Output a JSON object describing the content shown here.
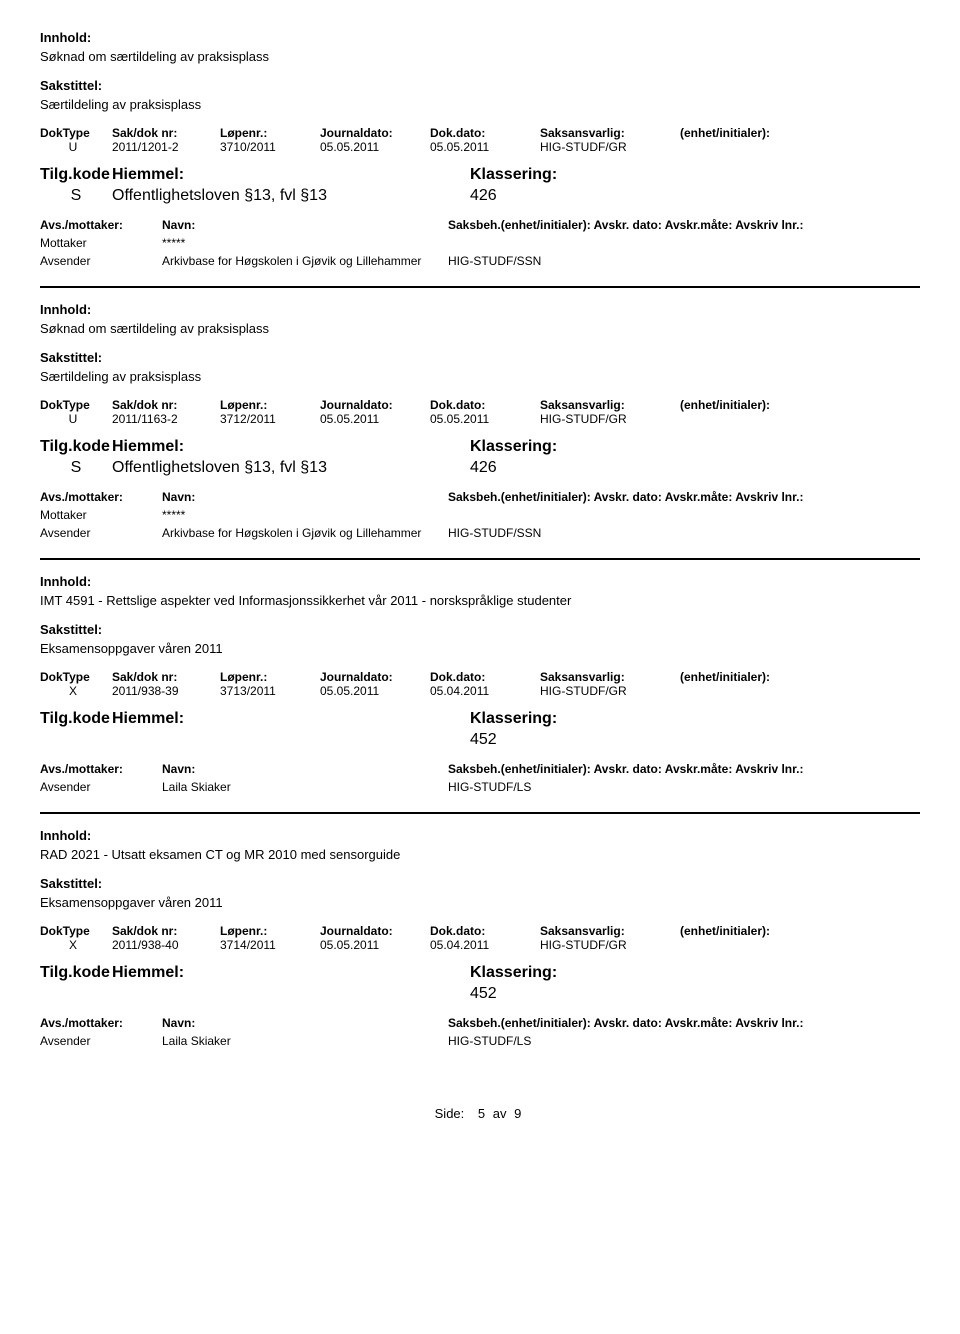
{
  "labels": {
    "innhold": "Innhold:",
    "sakstittel": "Sakstittel:",
    "doktype": "DokType",
    "sakdok": "Sak/dok nr:",
    "lopenr": "Løpenr.:",
    "journaldato": "Journaldato:",
    "dokdato": "Dok.dato:",
    "saksansvarlig": "Saksansvarlig:",
    "enhet": "(enhet/initialer):",
    "tilgkode": "Tilg.kode",
    "hiemmel": "Hiemmel:",
    "klassering": "Klassering:",
    "avs_mottaker": "Avs./mottaker:",
    "navn": "Navn:",
    "saksbeh_line": "Saksbeh.(enhet/initialer): Avskr. dato:   Avskr.måte:  Avskriv lnr.:",
    "mottaker": "Mottaker",
    "avsender": "Avsender",
    "side": "Side:",
    "av": "av"
  },
  "records": [
    {
      "innhold": "Søknad om særtildeling av praksisplass",
      "sakstittel": "Særtildeling av praksisplass",
      "doktype": "U",
      "sakdok": "2011/1201-2",
      "lopenr": "3710/2011",
      "journaldato": "05.05.2011",
      "dokdato": "05.05.2011",
      "saksansvarlig": "HIG-STUDF/GR",
      "tilgkode": "S",
      "hiemmel": "Offentlighetsloven §13, fvl §13",
      "klassering": "426",
      "parties": [
        {
          "role": "Mottaker",
          "name": "*****",
          "unit": ""
        },
        {
          "role": "Avsender",
          "name": "Arkivbase for Høgskolen i Gjøvik og Lillehammer",
          "unit": "HIG-STUDF/SSN"
        }
      ]
    },
    {
      "innhold": "Søknad om særtildeling av praksisplass",
      "sakstittel": "Særtildeling av praksisplass",
      "doktype": "U",
      "sakdok": "2011/1163-2",
      "lopenr": "3712/2011",
      "journaldato": "05.05.2011",
      "dokdato": "05.05.2011",
      "saksansvarlig": "HIG-STUDF/GR",
      "tilgkode": "S",
      "hiemmel": "Offentlighetsloven §13, fvl §13",
      "klassering": "426",
      "parties": [
        {
          "role": "Mottaker",
          "name": "*****",
          "unit": ""
        },
        {
          "role": "Avsender",
          "name": "Arkivbase for Høgskolen i Gjøvik og Lillehammer",
          "unit": "HIG-STUDF/SSN"
        }
      ]
    },
    {
      "innhold": "IMT 4591 - Rettslige aspekter ved Informasjonssikkerhet vår 2011 - norskspråklige studenter",
      "sakstittel": "Eksamensoppgaver våren 2011",
      "doktype": "X",
      "sakdok": "2011/938-39",
      "lopenr": "3713/2011",
      "journaldato": "05.05.2011",
      "dokdato": "05.04.2011",
      "saksansvarlig": "HIG-STUDF/GR",
      "tilgkode": "",
      "hiemmel": "",
      "klassering": "452",
      "parties": [
        {
          "role": "Avsender",
          "name": "Laila Skiaker",
          "unit": "HIG-STUDF/LS"
        }
      ]
    },
    {
      "innhold": "RAD 2021 - Utsatt eksamen CT og MR 2010 med sensorguide",
      "sakstittel": "Eksamensoppgaver våren 2011",
      "doktype": "X",
      "sakdok": "2011/938-40",
      "lopenr": "3714/2011",
      "journaldato": "05.05.2011",
      "dokdato": "05.04.2011",
      "saksansvarlig": "HIG-STUDF/GR",
      "tilgkode": "",
      "hiemmel": "",
      "klassering": "452",
      "parties": [
        {
          "role": "Avsender",
          "name": "Laila Skiaker",
          "unit": "HIG-STUDF/LS"
        }
      ]
    }
  ],
  "footer": {
    "page": "5",
    "total": "9"
  }
}
